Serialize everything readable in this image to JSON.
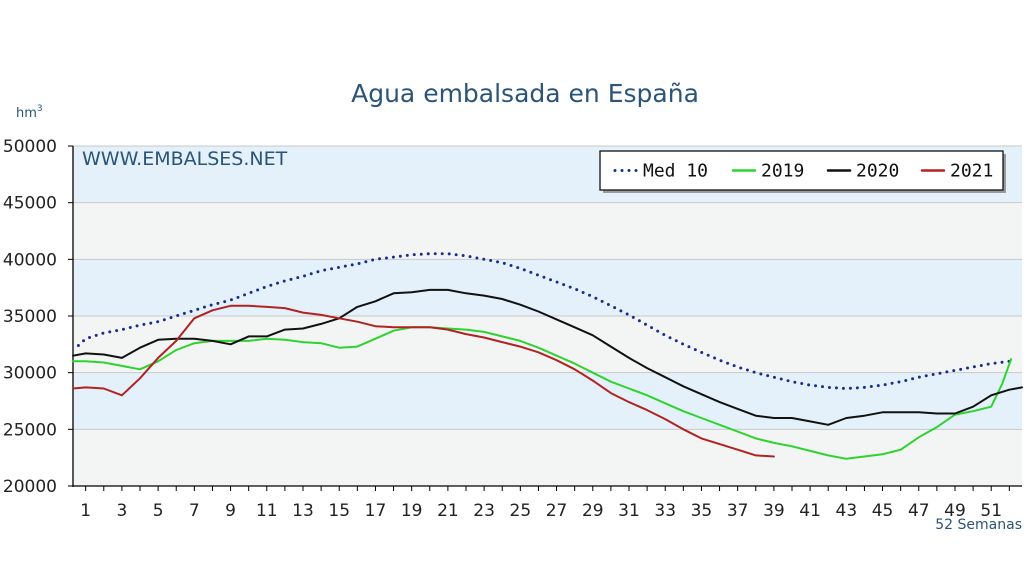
{
  "chart_data": {
    "type": "line",
    "title": "Agua embalsada en España",
    "ylabel": "hm",
    "ylabel_sup": "3",
    "xlabel": "52 Semanas",
    "watermark": "WWW.EMBALSES.NET",
    "ylim": [
      20000,
      50000
    ],
    "xlim": [
      0.3,
      52.7
    ],
    "yticks": [
      20000,
      25000,
      30000,
      35000,
      40000,
      45000,
      50000
    ],
    "ytick_labels": [
      "20000",
      "25000",
      "30000",
      "35000",
      "40000",
      "45000",
      "50000"
    ],
    "xticks": [
      1,
      3,
      5,
      7,
      9,
      11,
      13,
      15,
      17,
      19,
      21,
      23,
      25,
      27,
      29,
      31,
      33,
      35,
      37,
      39,
      41,
      43,
      45,
      47,
      49,
      51
    ],
    "xtick_labels": [
      "1",
      "3",
      "5",
      "7",
      "9",
      "11",
      "13",
      "15",
      "17",
      "19",
      "21",
      "23",
      "25",
      "27",
      "29",
      "31",
      "33",
      "35",
      "37",
      "39",
      "41",
      "43",
      "45",
      "47",
      "49",
      "51"
    ],
    "legend_position": "top-right",
    "colors": {
      "band": "#e4f1fa",
      "plot": "#f3f5f5",
      "grid": "#c9c9c9"
    },
    "series": [
      {
        "name": "Med 10",
        "color": "#1a2f8c",
        "style": "dotted",
        "points": [
          [
            0.6,
            32400
          ],
          [
            1,
            33000
          ],
          [
            2,
            33500
          ],
          [
            3,
            33800
          ],
          [
            4,
            34200
          ],
          [
            5,
            34500
          ],
          [
            6,
            35000
          ],
          [
            7,
            35500
          ],
          [
            8,
            36000
          ],
          [
            9,
            36400
          ],
          [
            10,
            37000
          ],
          [
            11,
            37600
          ],
          [
            12,
            38100
          ],
          [
            13,
            38500
          ],
          [
            14,
            39000
          ],
          [
            15,
            39300
          ],
          [
            16,
            39600
          ],
          [
            17,
            40000
          ],
          [
            18,
            40200
          ],
          [
            19,
            40400
          ],
          [
            20,
            40500
          ],
          [
            21,
            40500
          ],
          [
            22,
            40300
          ],
          [
            23,
            40000
          ],
          [
            24,
            39700
          ],
          [
            25,
            39200
          ],
          [
            26,
            38600
          ],
          [
            27,
            38000
          ],
          [
            28,
            37400
          ],
          [
            29,
            36700
          ],
          [
            30,
            35900
          ],
          [
            31,
            35100
          ],
          [
            32,
            34200
          ],
          [
            33,
            33300
          ],
          [
            34,
            32500
          ],
          [
            35,
            31800
          ],
          [
            36,
            31100
          ],
          [
            37,
            30500
          ],
          [
            38,
            30000
          ],
          [
            39,
            29600
          ],
          [
            40,
            29200
          ],
          [
            41,
            28900
          ],
          [
            42,
            28700
          ],
          [
            43,
            28600
          ],
          [
            44,
            28700
          ],
          [
            45,
            28900
          ],
          [
            46,
            29200
          ],
          [
            47,
            29600
          ],
          [
            48,
            29900
          ],
          [
            49,
            30200
          ],
          [
            50,
            30500
          ],
          [
            51,
            30800
          ],
          [
            52,
            31000
          ]
        ]
      },
      {
        "name": "2019",
        "color": "#2fd32f",
        "style": "solid",
        "points": [
          [
            0.3,
            31000
          ],
          [
            1,
            31000
          ],
          [
            2,
            30900
          ],
          [
            3,
            30600
          ],
          [
            4,
            30300
          ],
          [
            5,
            31000
          ],
          [
            6,
            32000
          ],
          [
            7,
            32600
          ],
          [
            8,
            32800
          ],
          [
            9,
            32800
          ],
          [
            10,
            32800
          ],
          [
            11,
            33000
          ],
          [
            12,
            32900
          ],
          [
            13,
            32700
          ],
          [
            14,
            32600
          ],
          [
            15,
            32200
          ],
          [
            16,
            32300
          ],
          [
            17,
            33000
          ],
          [
            18,
            33700
          ],
          [
            19,
            34000
          ],
          [
            20,
            34000
          ],
          [
            21,
            33900
          ],
          [
            22,
            33800
          ],
          [
            23,
            33600
          ],
          [
            24,
            33200
          ],
          [
            25,
            32800
          ],
          [
            26,
            32200
          ],
          [
            27,
            31500
          ],
          [
            28,
            30800
          ],
          [
            29,
            30000
          ],
          [
            30,
            29200
          ],
          [
            31,
            28600
          ],
          [
            32,
            28000
          ],
          [
            33,
            27300
          ],
          [
            34,
            26600
          ],
          [
            35,
            26000
          ],
          [
            36,
            25400
          ],
          [
            37,
            24800
          ],
          [
            38,
            24200
          ],
          [
            39,
            23800
          ],
          [
            40,
            23500
          ],
          [
            41,
            23100
          ],
          [
            42,
            22700
          ],
          [
            43,
            22400
          ],
          [
            44,
            22600
          ],
          [
            45,
            22800
          ],
          [
            46,
            23200
          ],
          [
            47,
            24300
          ],
          [
            48,
            25200
          ],
          [
            49,
            26300
          ],
          [
            50,
            26600
          ],
          [
            51,
            27000
          ],
          [
            51.6,
            29000
          ],
          [
            52.1,
            31200
          ]
        ]
      },
      {
        "name": "2020",
        "color": "#111111",
        "style": "solid",
        "points": [
          [
            0.3,
            31500
          ],
          [
            1,
            31700
          ],
          [
            2,
            31600
          ],
          [
            3,
            31300
          ],
          [
            4,
            32200
          ],
          [
            5,
            32900
          ],
          [
            6,
            33000
          ],
          [
            7,
            33000
          ],
          [
            8,
            32800
          ],
          [
            9,
            32500
          ],
          [
            10,
            33200
          ],
          [
            11,
            33200
          ],
          [
            12,
            33800
          ],
          [
            13,
            33900
          ],
          [
            14,
            34300
          ],
          [
            15,
            34800
          ],
          [
            16,
            35800
          ],
          [
            17,
            36300
          ],
          [
            18,
            37000
          ],
          [
            19,
            37100
          ],
          [
            20,
            37300
          ],
          [
            21,
            37300
          ],
          [
            22,
            37000
          ],
          [
            23,
            36800
          ],
          [
            24,
            36500
          ],
          [
            25,
            36000
          ],
          [
            26,
            35400
          ],
          [
            27,
            34700
          ],
          [
            28,
            34000
          ],
          [
            29,
            33300
          ],
          [
            30,
            32300
          ],
          [
            31,
            31300
          ],
          [
            32,
            30400
          ],
          [
            33,
            29600
          ],
          [
            34,
            28800
          ],
          [
            35,
            28100
          ],
          [
            36,
            27400
          ],
          [
            37,
            26800
          ],
          [
            38,
            26200
          ],
          [
            39,
            26000
          ],
          [
            40,
            26000
          ],
          [
            41,
            25700
          ],
          [
            42,
            25400
          ],
          [
            43,
            26000
          ],
          [
            44,
            26200
          ],
          [
            45,
            26500
          ],
          [
            46,
            26500
          ],
          [
            47,
            26500
          ],
          [
            48,
            26400
          ],
          [
            49,
            26400
          ],
          [
            50,
            27000
          ],
          [
            51,
            28000
          ],
          [
            52,
            28500
          ],
          [
            52.7,
            28700
          ]
        ]
      },
      {
        "name": "2021",
        "color": "#b22222",
        "style": "solid",
        "points": [
          [
            0.3,
            28600
          ],
          [
            1,
            28700
          ],
          [
            2,
            28600
          ],
          [
            3,
            28000
          ],
          [
            4,
            29500
          ],
          [
            5,
            31300
          ],
          [
            6,
            32800
          ],
          [
            7,
            34800
          ],
          [
            8,
            35500
          ],
          [
            9,
            35900
          ],
          [
            10,
            35900
          ],
          [
            11,
            35800
          ],
          [
            12,
            35700
          ],
          [
            13,
            35300
          ],
          [
            14,
            35100
          ],
          [
            15,
            34800
          ],
          [
            16,
            34500
          ],
          [
            17,
            34100
          ],
          [
            18,
            34000
          ],
          [
            19,
            34000
          ],
          [
            20,
            34000
          ],
          [
            21,
            33800
          ],
          [
            22,
            33400
          ],
          [
            23,
            33100
          ],
          [
            24,
            32700
          ],
          [
            25,
            32300
          ],
          [
            26,
            31800
          ],
          [
            27,
            31100
          ],
          [
            28,
            30300
          ],
          [
            29,
            29300
          ],
          [
            30,
            28200
          ],
          [
            31,
            27400
          ],
          [
            32,
            26700
          ],
          [
            33,
            25900
          ],
          [
            34,
            25000
          ],
          [
            35,
            24200
          ],
          [
            36,
            23700
          ],
          [
            37,
            23200
          ],
          [
            38,
            22700
          ],
          [
            39,
            22600
          ]
        ]
      }
    ]
  }
}
